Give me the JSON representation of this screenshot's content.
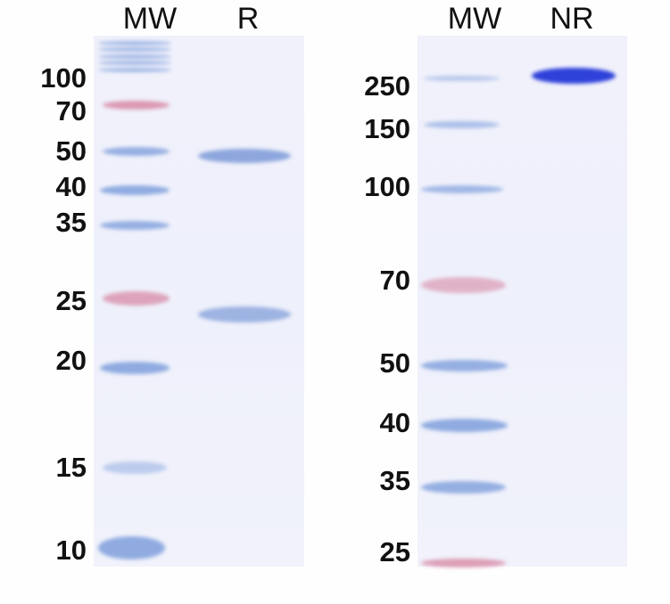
{
  "left_panel": {
    "lanes": [
      "MW",
      "R"
    ],
    "mw_labels": [
      "100",
      "70",
      "50",
      "40",
      "35",
      "25",
      "20",
      "15",
      "10"
    ]
  },
  "right_panel": {
    "lanes": [
      "MW",
      "NR"
    ],
    "mw_labels": [
      "250",
      "150",
      "100",
      "70",
      "50",
      "40",
      "35",
      "25"
    ]
  },
  "colors": {
    "marker_blue": "#7f9fdc",
    "marker_pink": "#d88aa6",
    "sample_band": "#7c9ad8",
    "nr_band": "#2438d8",
    "gel_background": "#eff0fb"
  }
}
